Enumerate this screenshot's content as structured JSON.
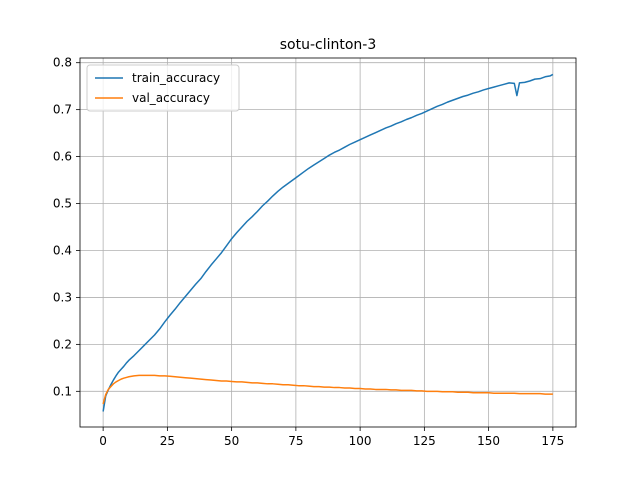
{
  "chart_data": {
    "type": "line",
    "title": "sotu-clinton-3",
    "xlabel": "",
    "ylabel": "",
    "xlim": [
      -9,
      184
    ],
    "ylim": [
      0.024,
      0.81
    ],
    "xticks": [
      0,
      25,
      50,
      75,
      100,
      125,
      150,
      175
    ],
    "yticks": [
      0.1,
      0.2,
      0.3,
      0.4,
      0.5,
      0.6,
      0.7,
      0.8
    ],
    "grid": true,
    "legend_position": "top-left",
    "series": [
      {
        "name": "train_accuracy",
        "color": "#1f77b4",
        "points": [
          [
            0,
            0.057
          ],
          [
            1,
            0.09
          ],
          [
            2,
            0.103
          ],
          [
            3,
            0.114
          ],
          [
            4,
            0.124
          ],
          [
            5,
            0.133
          ],
          [
            6,
            0.141
          ],
          [
            7,
            0.147
          ],
          [
            8,
            0.153
          ],
          [
            9,
            0.16
          ],
          [
            10,
            0.166
          ],
          [
            12,
            0.176
          ],
          [
            14,
            0.187
          ],
          [
            16,
            0.198
          ],
          [
            18,
            0.209
          ],
          [
            20,
            0.22
          ],
          [
            22,
            0.233
          ],
          [
            24,
            0.248
          ],
          [
            26,
            0.262
          ],
          [
            28,
            0.275
          ],
          [
            30,
            0.289
          ],
          [
            32,
            0.302
          ],
          [
            34,
            0.315
          ],
          [
            36,
            0.328
          ],
          [
            38,
            0.34
          ],
          [
            40,
            0.355
          ],
          [
            42,
            0.369
          ],
          [
            44,
            0.382
          ],
          [
            46,
            0.395
          ],
          [
            48,
            0.41
          ],
          [
            50,
            0.425
          ],
          [
            52,
            0.438
          ],
          [
            54,
            0.45
          ],
          [
            56,
            0.462
          ],
          [
            58,
            0.472
          ],
          [
            60,
            0.483
          ],
          [
            62,
            0.495
          ],
          [
            64,
            0.505
          ],
          [
            66,
            0.516
          ],
          [
            68,
            0.526
          ],
          [
            70,
            0.535
          ],
          [
            72,
            0.543
          ],
          [
            74,
            0.551
          ],
          [
            76,
            0.559
          ],
          [
            78,
            0.567
          ],
          [
            80,
            0.575
          ],
          [
            82,
            0.582
          ],
          [
            84,
            0.589
          ],
          [
            86,
            0.596
          ],
          [
            88,
            0.603
          ],
          [
            90,
            0.609
          ],
          [
            92,
            0.614
          ],
          [
            94,
            0.62
          ],
          [
            96,
            0.626
          ],
          [
            98,
            0.631
          ],
          [
            100,
            0.636
          ],
          [
            102,
            0.641
          ],
          [
            104,
            0.646
          ],
          [
            106,
            0.651
          ],
          [
            108,
            0.656
          ],
          [
            110,
            0.661
          ],
          [
            112,
            0.665
          ],
          [
            114,
            0.67
          ],
          [
            116,
            0.674
          ],
          [
            118,
            0.679
          ],
          [
            120,
            0.683
          ],
          [
            122,
            0.688
          ],
          [
            124,
            0.692
          ],
          [
            126,
            0.697
          ],
          [
            128,
            0.702
          ],
          [
            130,
            0.707
          ],
          [
            132,
            0.711
          ],
          [
            134,
            0.716
          ],
          [
            136,
            0.72
          ],
          [
            138,
            0.724
          ],
          [
            140,
            0.728
          ],
          [
            142,
            0.731
          ],
          [
            144,
            0.735
          ],
          [
            146,
            0.738
          ],
          [
            148,
            0.742
          ],
          [
            150,
            0.745
          ],
          [
            152,
            0.748
          ],
          [
            154,
            0.751
          ],
          [
            156,
            0.754
          ],
          [
            158,
            0.757
          ],
          [
            160,
            0.756
          ],
          [
            161,
            0.73
          ],
          [
            162,
            0.757
          ],
          [
            164,
            0.758
          ],
          [
            166,
            0.761
          ],
          [
            168,
            0.765
          ],
          [
            170,
            0.766
          ],
          [
            172,
            0.77
          ],
          [
            174,
            0.772
          ],
          [
            175,
            0.775
          ]
        ]
      },
      {
        "name": "val_accuracy",
        "color": "#ff7f0e",
        "points": [
          [
            0,
            0.073
          ],
          [
            1,
            0.093
          ],
          [
            2,
            0.104
          ],
          [
            3,
            0.11
          ],
          [
            4,
            0.116
          ],
          [
            5,
            0.12
          ],
          [
            6,
            0.123
          ],
          [
            7,
            0.126
          ],
          [
            8,
            0.128
          ],
          [
            10,
            0.131
          ],
          [
            12,
            0.133
          ],
          [
            14,
            0.134
          ],
          [
            16,
            0.134
          ],
          [
            18,
            0.134
          ],
          [
            20,
            0.134
          ],
          [
            22,
            0.133
          ],
          [
            24,
            0.133
          ],
          [
            26,
            0.132
          ],
          [
            28,
            0.131
          ],
          [
            30,
            0.13
          ],
          [
            32,
            0.129
          ],
          [
            34,
            0.128
          ],
          [
            36,
            0.127
          ],
          [
            38,
            0.126
          ],
          [
            40,
            0.125
          ],
          [
            42,
            0.124
          ],
          [
            44,
            0.123
          ],
          [
            46,
            0.122
          ],
          [
            48,
            0.122
          ],
          [
            50,
            0.121
          ],
          [
            52,
            0.12
          ],
          [
            54,
            0.12
          ],
          [
            56,
            0.119
          ],
          [
            58,
            0.118
          ],
          [
            60,
            0.118
          ],
          [
            62,
            0.117
          ],
          [
            64,
            0.116
          ],
          [
            66,
            0.116
          ],
          [
            68,
            0.115
          ],
          [
            70,
            0.114
          ],
          [
            72,
            0.114
          ],
          [
            74,
            0.113
          ],
          [
            76,
            0.112
          ],
          [
            78,
            0.112
          ],
          [
            80,
            0.111
          ],
          [
            82,
            0.11
          ],
          [
            84,
            0.11
          ],
          [
            86,
            0.109
          ],
          [
            88,
            0.109
          ],
          [
            90,
            0.108
          ],
          [
            92,
            0.108
          ],
          [
            94,
            0.107
          ],
          [
            96,
            0.107
          ],
          [
            98,
            0.106
          ],
          [
            100,
            0.106
          ],
          [
            102,
            0.105
          ],
          [
            104,
            0.105
          ],
          [
            106,
            0.104
          ],
          [
            108,
            0.104
          ],
          [
            110,
            0.104
          ],
          [
            112,
            0.103
          ],
          [
            114,
            0.103
          ],
          [
            116,
            0.102
          ],
          [
            118,
            0.102
          ],
          [
            120,
            0.102
          ],
          [
            122,
            0.101
          ],
          [
            124,
            0.101
          ],
          [
            126,
            0.1
          ],
          [
            128,
            0.1
          ],
          [
            130,
            0.1
          ],
          [
            132,
            0.099
          ],
          [
            134,
            0.099
          ],
          [
            136,
            0.099
          ],
          [
            138,
            0.098
          ],
          [
            140,
            0.098
          ],
          [
            142,
            0.098
          ],
          [
            144,
            0.097
          ],
          [
            146,
            0.097
          ],
          [
            148,
            0.097
          ],
          [
            150,
            0.097
          ],
          [
            152,
            0.096
          ],
          [
            154,
            0.096
          ],
          [
            156,
            0.096
          ],
          [
            158,
            0.096
          ],
          [
            160,
            0.096
          ],
          [
            162,
            0.095
          ],
          [
            164,
            0.095
          ],
          [
            166,
            0.095
          ],
          [
            168,
            0.095
          ],
          [
            170,
            0.095
          ],
          [
            172,
            0.094
          ],
          [
            174,
            0.094
          ],
          [
            175,
            0.094
          ]
        ]
      }
    ]
  }
}
